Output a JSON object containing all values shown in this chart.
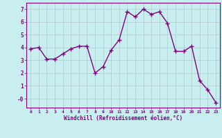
{
  "x": [
    0,
    1,
    2,
    3,
    4,
    5,
    6,
    7,
    8,
    9,
    10,
    11,
    12,
    13,
    14,
    15,
    16,
    17,
    18,
    19,
    20,
    21,
    22,
    23
  ],
  "y": [
    3.9,
    4.0,
    3.1,
    3.1,
    3.5,
    3.9,
    4.1,
    4.1,
    2.0,
    2.5,
    3.8,
    4.6,
    6.8,
    6.4,
    7.0,
    6.6,
    6.8,
    5.9,
    3.7,
    3.7,
    4.1,
    1.4,
    0.7,
    -0.3
  ],
  "line_color": "#800080",
  "marker": "D",
  "marker_size": 2,
  "line_width": 1.0,
  "bg_color": "#c8eef0",
  "grid_color": "#b0c8c8",
  "xlabel": "Windchill (Refroidissement éolien,°C)",
  "xlabel_color": "#800080",
  "tick_color": "#800080",
  "ylim": [
    -0.7,
    7.5
  ],
  "xlim": [
    -0.5,
    23.5
  ],
  "yticks": [
    0,
    1,
    2,
    3,
    4,
    5,
    6,
    7
  ],
  "ytick_labels": [
    "-0",
    "1",
    "2",
    "3",
    "4",
    "5",
    "6",
    "7"
  ],
  "xticks": [
    0,
    1,
    2,
    3,
    4,
    5,
    6,
    7,
    8,
    9,
    10,
    11,
    12,
    13,
    14,
    15,
    16,
    17,
    18,
    19,
    20,
    21,
    22,
    23
  ]
}
